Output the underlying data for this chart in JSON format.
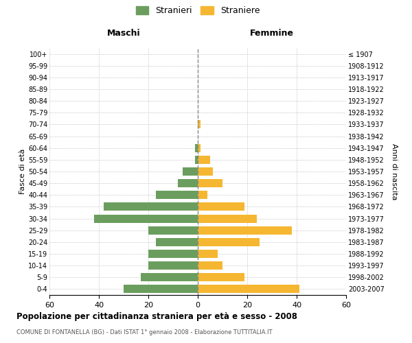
{
  "age_groups": [
    "0-4",
    "5-9",
    "10-14",
    "15-19",
    "20-24",
    "25-29",
    "30-34",
    "35-39",
    "40-44",
    "45-49",
    "50-54",
    "55-59",
    "60-64",
    "65-69",
    "70-74",
    "75-79",
    "80-84",
    "85-89",
    "90-94",
    "95-99",
    "100+"
  ],
  "birth_years": [
    "2003-2007",
    "1998-2002",
    "1993-1997",
    "1988-1992",
    "1983-1987",
    "1978-1982",
    "1973-1977",
    "1968-1972",
    "1963-1967",
    "1958-1962",
    "1953-1957",
    "1948-1952",
    "1943-1947",
    "1938-1942",
    "1933-1937",
    "1928-1932",
    "1923-1927",
    "1918-1922",
    "1913-1917",
    "1908-1912",
    "≤ 1907"
  ],
  "maschi": [
    30,
    23,
    20,
    20,
    17,
    20,
    42,
    38,
    17,
    8,
    6,
    1,
    1,
    0,
    0,
    0,
    0,
    0,
    0,
    0,
    0
  ],
  "femmine": [
    41,
    19,
    10,
    8,
    25,
    38,
    24,
    19,
    4,
    10,
    6,
    5,
    1,
    0,
    1,
    0,
    0,
    0,
    0,
    0,
    0
  ],
  "maschi_color": "#6b9e5e",
  "femmine_color": "#f5b731",
  "background_color": "#ffffff",
  "grid_color": "#cccccc",
  "title": "Popolazione per cittadinanza straniera per età e sesso - 2008",
  "subtitle": "COMUNE DI FONTANELLA (BG) - Dati ISTAT 1° gennaio 2008 - Elaborazione TUTTITALIA.IT",
  "xlabel_left": "Maschi",
  "xlabel_right": "Femmine",
  "ylabel_left": "Fasce di età",
  "ylabel_right": "Anni di nascita",
  "legend_stranieri": "Stranieri",
  "legend_straniere": "Straniere",
  "xlim": 60
}
